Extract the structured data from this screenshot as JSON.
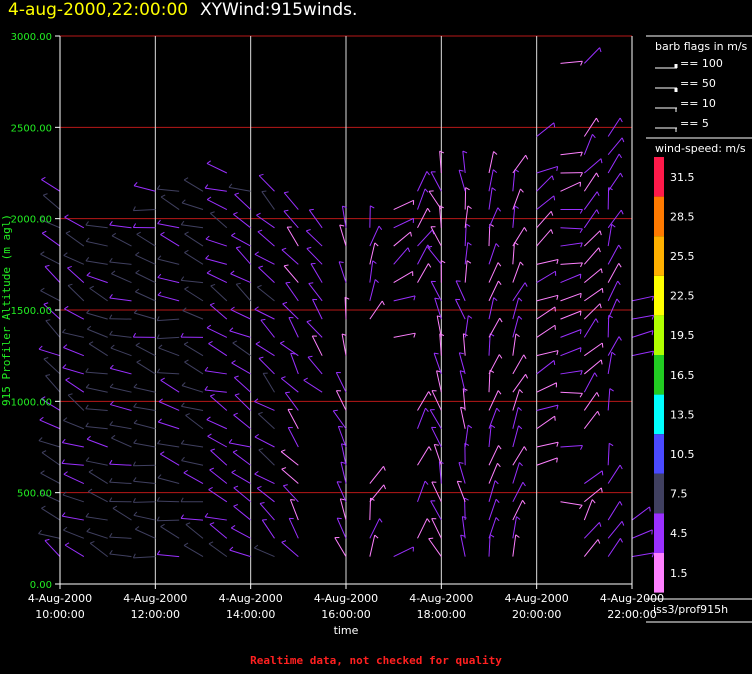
{
  "header": {
    "date_time": "4-aug-2000,22:00:00",
    "plot_name": "XYWind:915winds."
  },
  "legend": {
    "barb_title": "barb flags in m/s",
    "barb_items": [
      "== 100",
      "== 50",
      "== 10",
      "== 5"
    ],
    "speed_title": "wind-speed: m/s",
    "speed_bins": [
      {
        "label": "31.5",
        "color": "#ff1a4a"
      },
      {
        "label": "28.5",
        "color": "#ff7a00"
      },
      {
        "label": "25.5",
        "color": "#ffb000"
      },
      {
        "label": "22.5",
        "color": "#ffff00"
      },
      {
        "label": "19.5",
        "color": "#b0ff00"
      },
      {
        "label": "16.5",
        "color": "#22cc22"
      },
      {
        "label": "13.5",
        "color": "#00ffff"
      },
      {
        "label": "10.5",
        "color": "#4a4aff"
      },
      {
        "label": "7.5",
        "color": "#404060"
      },
      {
        "label": "4.5",
        "color": "#9a30ff"
      },
      {
        "label": "1.5",
        "color": "#ff80ff"
      }
    ]
  },
  "source": "iss3/prof915h",
  "footer": "Realtime data, not checked for quality",
  "chart_data": {
    "type": "wind-barb",
    "xlabel": "time",
    "ylabel": "915 Profiler Altitude (m agl)",
    "ylim": [
      0,
      3000
    ],
    "xlim": [
      "4-Aug-2000 10:00:00",
      "4-Aug-2000 22:00:00"
    ],
    "y_ticks": [
      "0.00",
      "500.00",
      "1000.00",
      "1500.00",
      "2000.00",
      "2500.00",
      "3000.00"
    ],
    "x_ticks": [
      {
        "date": "4-Aug-2000",
        "time": "10:00:00"
      },
      {
        "date": "4-Aug-2000",
        "time": "12:00:00"
      },
      {
        "date": "4-Aug-2000",
        "time": "14:00:00"
      },
      {
        "date": "4-Aug-2000",
        "time": "16:00:00"
      },
      {
        "date": "4-Aug-2000",
        "time": "18:00:00"
      },
      {
        "date": "4-Aug-2000",
        "time": "20:00:00"
      },
      {
        "date": "4-Aug-2000",
        "time": "22:00:00"
      }
    ],
    "grid": true,
    "observations_description": "wind barbs at ~30-min intervals, ~100 m vertical spacing",
    "series": [
      {
        "time_h": 10.0,
        "alt_m": [
          150,
          250,
          350,
          450,
          550,
          650,
          750,
          850,
          950,
          1050,
          1150,
          1250,
          1350,
          1450,
          1550,
          1650,
          1750,
          1850,
          1950,
          2050,
          2150
        ],
        "dir_deg": 300,
        "speed_ms": 6
      },
      {
        "time_h": 10.5,
        "alt_m": [
          150,
          250,
          350,
          450,
          550,
          650,
          750,
          850,
          950,
          1050,
          1150,
          1250,
          1350,
          1450,
          1550,
          1650,
          1750,
          1850,
          1950
        ],
        "dir_deg": 295,
        "speed_ms": 6
      },
      {
        "time_h": 11.0,
        "alt_m": [
          150,
          250,
          350,
          450,
          550,
          650,
          750,
          850,
          950,
          1050,
          1150,
          1250,
          1350,
          1450,
          1550,
          1650,
          1750,
          1850,
          1950
        ],
        "dir_deg": 290,
        "speed_ms": 7
      },
      {
        "time_h": 11.5,
        "alt_m": [
          150,
          250,
          350,
          450,
          550,
          650,
          750,
          850,
          950,
          1050,
          1150,
          1250,
          1350,
          1450,
          1550,
          1650,
          1750,
          1850,
          1950
        ],
        "dir_deg": 290,
        "speed_ms": 7
      },
      {
        "time_h": 12.0,
        "alt_m": [
          150,
          250,
          350,
          450,
          550,
          650,
          750,
          850,
          950,
          1050,
          1150,
          1250,
          1350,
          1450,
          1550,
          1650,
          1750,
          1850,
          1950,
          2050,
          2150
        ],
        "dir_deg": 285,
        "speed_ms": 7
      },
      {
        "time_h": 12.5,
        "alt_m": [
          150,
          250,
          350,
          450,
          550,
          650,
          750,
          850,
          950,
          1050,
          1150,
          1250,
          1350,
          1450,
          1550,
          1650,
          1750,
          1850,
          1950,
          2050,
          2150
        ],
        "dir_deg": 285,
        "speed_ms": 6
      },
      {
        "time_h": 13.0,
        "alt_m": [
          150,
          250,
          350,
          450,
          550,
          650,
          750,
          850,
          950,
          1050,
          1150,
          1250,
          1350,
          1450,
          1550,
          1650,
          1750,
          1850,
          1950,
          2050,
          2150
        ],
        "dir_deg": 290,
        "speed_ms": 6
      },
      {
        "time_h": 13.5,
        "alt_m": [
          150,
          250,
          350,
          450,
          550,
          650,
          750,
          850,
          950,
          1050,
          1150,
          1250,
          1350,
          1450,
          1550,
          1650,
          1750,
          1850,
          1950,
          2050,
          2150,
          2250
        ],
        "dir_deg": 295,
        "speed_ms": 5
      },
      {
        "time_h": 14.0,
        "alt_m": [
          150,
          250,
          350,
          450,
          550,
          650,
          750,
          850,
          950,
          1050,
          1150,
          1250,
          1350,
          1450,
          1550,
          1650,
          1750,
          1850,
          1950,
          2050,
          2150
        ],
        "dir_deg": 300,
        "speed_ms": 5
      },
      {
        "time_h": 14.5,
        "alt_m": [
          150,
          250,
          350,
          450,
          550,
          650,
          750,
          850,
          950,
          1050,
          1150,
          1250,
          1350,
          1450,
          1550,
          1650,
          1750,
          1850,
          1950,
          2050,
          2150
        ],
        "dir_deg": 310,
        "speed_ms": 5
      },
      {
        "time_h": 15.0,
        "alt_m": [
          150,
          250,
          350,
          450,
          550,
          650,
          750,
          850,
          950,
          1050,
          1150,
          1250,
          1350,
          1450,
          1550,
          1650,
          1750,
          1850,
          1950,
          2050
        ],
        "dir_deg": 320,
        "speed_ms": 4
      },
      {
        "time_h": 15.5,
        "alt_m": [
          1050,
          1150,
          1250,
          1350,
          1450,
          1550,
          1650,
          1750,
          1850,
          1950
        ],
        "dir_deg": 320,
        "speed_ms": 4
      },
      {
        "time_h": 16.0,
        "alt_m": [
          150,
          250,
          350,
          450,
          550,
          650,
          750,
          850,
          950,
          1050,
          1250,
          1450,
          1650,
          1850,
          1950
        ],
        "dir_deg": 340,
        "speed_ms": 3
      },
      {
        "time_h": 16.5,
        "alt_m": [
          150,
          250,
          350,
          450,
          550,
          1450,
          1550,
          1650,
          1750,
          1850,
          1950
        ],
        "dir_deg": 20,
        "speed_ms": 3
      },
      {
        "time_h": 17.0,
        "alt_m": [
          150,
          1350,
          1550,
          1650,
          1750,
          1850,
          1950,
          2050
        ],
        "dir_deg": 60,
        "speed_ms": 3
      },
      {
        "time_h": 17.5,
        "alt_m": [
          250,
          450,
          650,
          850,
          950,
          1650,
          1750,
          1850,
          1950,
          2050,
          2150
        ],
        "dir_deg": 30,
        "speed_ms": 3
      },
      {
        "time_h": 18.0,
        "alt_m": [
          150,
          250,
          350,
          450,
          550,
          650,
          750,
          850,
          950,
          1050,
          1150,
          1250,
          1350,
          1450,
          1550,
          1650,
          1750,
          1850,
          1950,
          2050,
          2150,
          2250
        ],
        "dir_deg": 340,
        "speed_ms": 3
      },
      {
        "time_h": 18.5,
        "alt_m": [
          150,
          250,
          350,
          450,
          550,
          650,
          750,
          850,
          950,
          1050,
          1150,
          1250,
          1350,
          1450,
          1550,
          1650,
          1750,
          1850,
          1950,
          2050,
          2150,
          2250
        ],
        "dir_deg": 350,
        "speed_ms": 3
      },
      {
        "time_h": 19.0,
        "alt_m": [
          150,
          250,
          350,
          450,
          550,
          650,
          750,
          850,
          950,
          1050,
          1150,
          1250,
          1350,
          1450,
          1550,
          1650,
          1750,
          1850,
          1950,
          2050,
          2150,
          2250
        ],
        "dir_deg": 10,
        "speed_ms": 3
      },
      {
        "time_h": 19.5,
        "alt_m": [
          150,
          250,
          350,
          450,
          550,
          650,
          750,
          850,
          950,
          1050,
          1150,
          1250,
          1350,
          1450,
          1550,
          1650,
          1750,
          1850,
          1950,
          2050,
          2150,
          2250
        ],
        "dir_deg": 20,
        "speed_ms": 3
      },
      {
        "time_h": 20.0,
        "alt_m": [
          650,
          750,
          850,
          950,
          1050,
          1150,
          1250,
          1350,
          1450,
          1550,
          1650,
          1750,
          1850,
          1950,
          2050,
          2150,
          2250,
          2450
        ],
        "dir_deg": 60,
        "speed_ms": 3
      },
      {
        "time_h": 20.5,
        "alt_m": [
          450,
          750,
          1050,
          1150,
          1250,
          1350,
          1450,
          1550,
          1650,
          1750,
          1850,
          1950,
          2050,
          2150,
          2250,
          2350,
          2850
        ],
        "dir_deg": 80,
        "speed_ms": 3
      },
      {
        "time_h": 21.0,
        "alt_m": [
          150,
          250,
          350,
          450,
          550,
          850,
          950,
          1050,
          1150,
          1250,
          1350,
          1450,
          1550,
          1650,
          1750,
          1850,
          1950,
          2050,
          2150,
          2250,
          2350,
          2450,
          2850
        ],
        "dir_deg": 40,
        "speed_ms": 3
      },
      {
        "time_h": 21.5,
        "alt_m": [
          150,
          250,
          350,
          550,
          650,
          950,
          1150,
          1250,
          1350,
          1450,
          1550,
          1650,
          1750,
          1850,
          1950,
          2050,
          2150,
          2250,
          2350,
          2450
        ],
        "dir_deg": 20,
        "speed_ms": 4
      },
      {
        "time_h": 22.0,
        "alt_m": [
          150,
          250,
          350,
          1250,
          1350,
          1450,
          1550
        ],
        "dir_deg": 70,
        "speed_ms": 4
      }
    ]
  }
}
